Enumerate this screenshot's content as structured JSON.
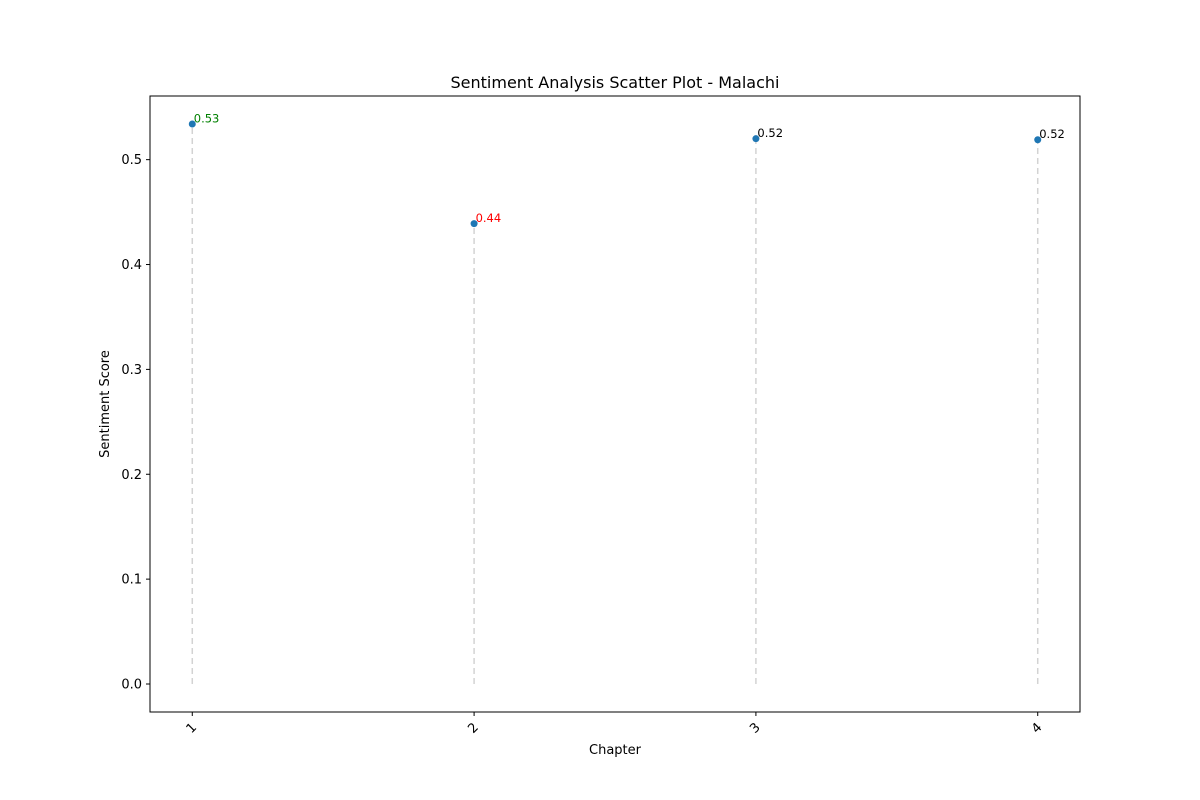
{
  "chart_data": {
    "type": "scatter",
    "title": "Sentiment Analysis Scatter Plot - Malachi",
    "xlabel": "Chapter",
    "ylabel": "Sentiment Score",
    "x": [
      1,
      2,
      3,
      4
    ],
    "x_tick_labels": [
      "1",
      "2",
      "3",
      "4"
    ],
    "y": [
      0.534,
      0.439,
      0.52,
      0.519
    ],
    "point_labels": [
      "0.53",
      "0.44",
      "0.52",
      "0.52"
    ],
    "label_colors": [
      "#008000",
      "#ff0000",
      "#000000",
      "#000000"
    ],
    "y_ticks": [
      0.0,
      0.1,
      0.2,
      0.3,
      0.4,
      0.5
    ],
    "y_tick_labels": [
      "0.0",
      "0.1",
      "0.2",
      "0.3",
      "0.4",
      "0.5"
    ],
    "xlim": [
      0.85,
      4.15
    ],
    "ylim": [
      -0.0267,
      0.5607
    ],
    "grid": false,
    "legend": "none",
    "marker_color": "#1f77b4",
    "stem_color": "#d3d3d3",
    "stem_style": "dashed"
  }
}
